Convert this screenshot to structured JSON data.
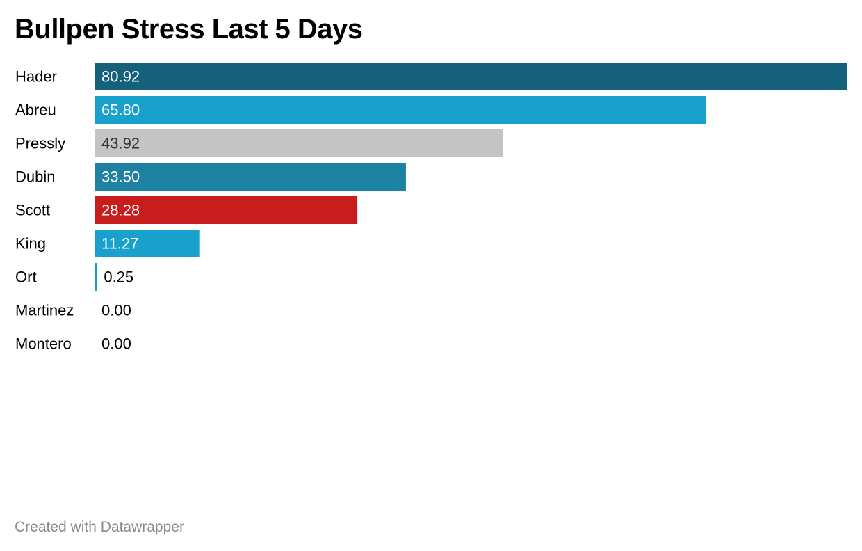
{
  "chart_data": {
    "type": "bar",
    "orientation": "horizontal",
    "title": "Bullpen Stress Last 5 Days",
    "categories": [
      "Hader",
      "Abreu",
      "Pressly",
      "Dubin",
      "Scott",
      "King",
      "Ort",
      "Martinez",
      "Montero"
    ],
    "values": [
      80.92,
      65.8,
      43.92,
      33.5,
      28.28,
      11.27,
      0.25,
      0.0,
      0.0
    ],
    "value_labels": [
      "80.92",
      "65.80",
      "43.92",
      "33.50",
      "28.28",
      "11.27",
      "0.25",
      "0.00",
      "0.00"
    ],
    "colors": [
      "#15607a",
      "#18a1cd",
      "#c4c4c4",
      "#1d81a2",
      "#c91d1d",
      "#18a1cd",
      "#18a1cd",
      "#18a1cd",
      "#18a1cd"
    ],
    "label_colors": [
      "#ffffff",
      "#ffffff",
      "#333333",
      "#ffffff",
      "#ffffff",
      "#ffffff",
      "#000000",
      "#000000",
      "#000000"
    ],
    "xlim": [
      0,
      80.92
    ],
    "grid": false,
    "legend": "none"
  },
  "footer": {
    "credit": "Created with Datawrapper"
  }
}
